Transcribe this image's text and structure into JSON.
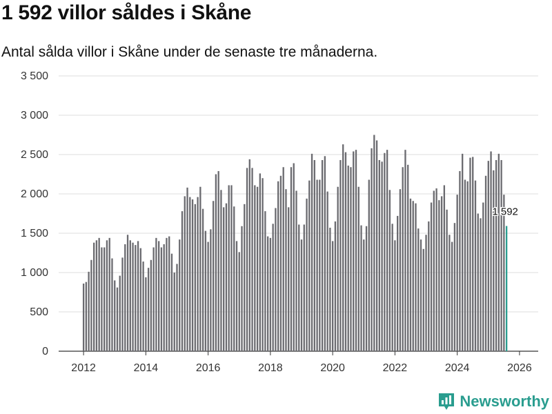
{
  "title": "1 592 villor såldes i Skåne",
  "subtitle": "Antal sålda villor i Skåne under de senaste tre månaderna.",
  "brand": {
    "name": "Newsworthy",
    "icon": "newsworthy-logo-icon",
    "color": "#2a9d8f"
  },
  "chart_data": {
    "type": "bar",
    "title": "1 592 villor såldes i Skåne",
    "xlabel": "",
    "ylabel": "",
    "ylim": [
      0,
      3500
    ],
    "xlim": [
      2011.2,
      2026.6
    ],
    "yticks": [
      0,
      500,
      1000,
      1500,
      2000,
      2500,
      3000,
      3500
    ],
    "ytick_labels": [
      "0",
      "500",
      "1 000",
      "1 500",
      "2 000",
      "2 500",
      "3 000",
      "3 500"
    ],
    "xticks": [
      2012,
      2014,
      2016,
      2018,
      2020,
      2022,
      2024,
      2026
    ],
    "xtick_labels": [
      "2012",
      "2014",
      "2016",
      "2018",
      "2020",
      "2022",
      "2024",
      "2026"
    ],
    "grid": true,
    "bar_color": "#6b6b70",
    "highlight_color": "#2a9d8f",
    "highlight_label": "1 592",
    "start": [
      2012,
      1
    ],
    "values": [
      860,
      880,
      1010,
      1160,
      1380,
      1410,
      1440,
      1320,
      1320,
      1410,
      1440,
      1180,
      900,
      810,
      960,
      1190,
      1360,
      1480,
      1410,
      1380,
      1350,
      1400,
      1310,
      1140,
      940,
      1060,
      1160,
      1320,
      1440,
      1400,
      1320,
      1360,
      1440,
      1460,
      1240,
      1000,
      1110,
      1420,
      1780,
      1970,
      2080,
      1960,
      1930,
      1870,
      1960,
      2090,
      1810,
      1530,
      1390,
      1550,
      1910,
      2250,
      2290,
      2050,
      1830,
      1880,
      2110,
      2110,
      1840,
      1400,
      1260,
      1590,
      1870,
      2330,
      2440,
      2330,
      2110,
      2090,
      2260,
      2200,
      1780,
      1460,
      1440,
      1620,
      1820,
      2160,
      2230,
      2340,
      2060,
      1830,
      2340,
      2390,
      2040,
      1610,
      1420,
      1610,
      1940,
      2170,
      2510,
      2430,
      2180,
      2180,
      2430,
      2480,
      2030,
      1570,
      1400,
      1650,
      2090,
      2430,
      2630,
      2530,
      2360,
      2340,
      2540,
      2560,
      2090,
      1600,
      1420,
      1590,
      2180,
      2580,
      2750,
      2680,
      2430,
      2410,
      2520,
      2560,
      2050,
      1620,
      1410,
      1720,
      2060,
      2340,
      2560,
      2370,
      1940,
      1910,
      1880,
      1560,
      1420,
      1300,
      1480,
      1650,
      1890,
      2040,
      2070,
      1920,
      1970,
      2110,
      1800,
      1480,
      1390,
      1630,
      1990,
      2290,
      2510,
      2180,
      2160,
      2460,
      2470,
      2170,
      1750,
      1690,
      1890,
      2230,
      2420,
      2540,
      2300,
      2430,
      2510,
      2430,
      1990,
      1592
    ]
  }
}
